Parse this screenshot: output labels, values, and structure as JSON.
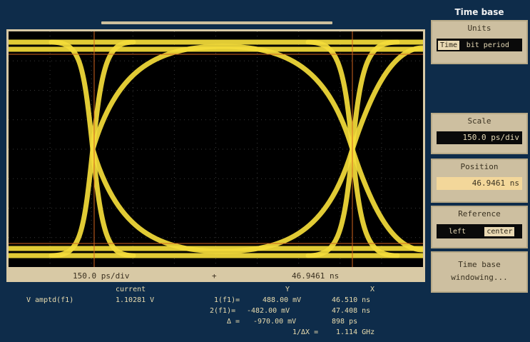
{
  "status_bar": {
    "scale": "150.0 ps/div",
    "marker": "+",
    "position": "46.9461 ns"
  },
  "measurements": {
    "col_current": "current",
    "col_y": "Y",
    "col_x": "X",
    "name": "V amptd(f1)",
    "current_value": "1.10281 V",
    "row1_label": "1(f1)=",
    "row1_y": "488.00 mV",
    "row1_x": "46.510 ns",
    "row2_label": "2(f1)=",
    "row2_y": "-482.00 mV",
    "row2_x": "47.408 ns",
    "row3_label": "Δ =",
    "row3_y": "-970.00 mV",
    "row3_x": "898 ps",
    "row4_label": "1/ΔX =",
    "row4_x": "1.114 GHz"
  },
  "panel": {
    "title": "Time base",
    "units": {
      "label": "Units",
      "option_time": "Time",
      "option_bit_period": "bit period",
      "selected": "Time"
    },
    "scale": {
      "label": "Scale",
      "value": "150.0 ps/div"
    },
    "position": {
      "label": "Position",
      "value": "46.9461 ns"
    },
    "reference": {
      "label": "Reference",
      "option_left": "left",
      "option_center": "center",
      "selected": "center"
    },
    "windowing": {
      "line1": "Time base",
      "line2": "windowing..."
    }
  },
  "colors": {
    "trace": "#f4dc3a",
    "background": "#0e2c4a",
    "panel": "#cdbfa0",
    "marker": "#d2641e"
  }
}
